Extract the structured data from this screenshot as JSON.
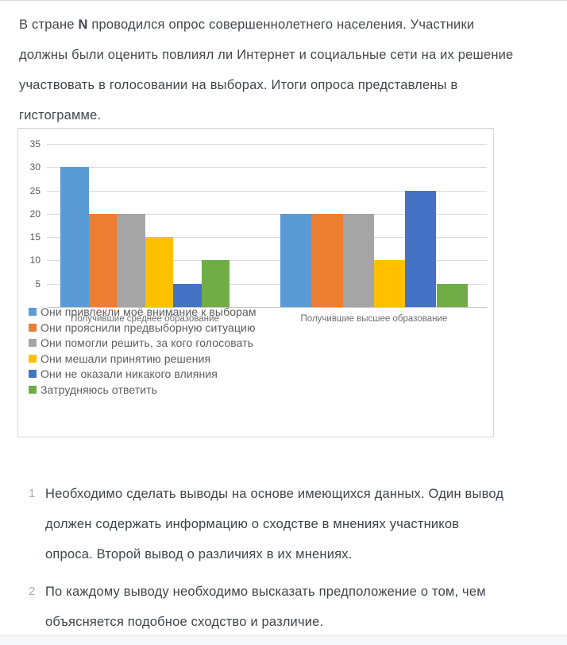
{
  "intro": {
    "line1_pre": "В стране ",
    "line1_bold": "N",
    "line1_post": " проводился опрос совершеннолетнего населения. Участники",
    "line2": "должны были оценить повлиял ли Интернет и социальные сети на их решение",
    "line3": "участвовать в голосовании на выборах. Итоги опроса представлены в",
    "line4": "гистограмме."
  },
  "chart_data": {
    "type": "bar",
    "title": "",
    "categories": [
      "Получившие среднее образование",
      "Получившие высшее образование"
    ],
    "series": [
      {
        "name": "Они привлекли моё внимание к выборам",
        "color": "#5B9BD5",
        "values": [
          30,
          20
        ]
      },
      {
        "name": "Они прояснили предвыборную ситуацию",
        "color": "#ED7D31",
        "values": [
          20,
          20
        ]
      },
      {
        "name": "Они помогли решить, за кого голосовать",
        "color": "#A5A5A5",
        "values": [
          20,
          20
        ]
      },
      {
        "name": "Они мешали принятию решения",
        "color": "#FFC000",
        "values": [
          15,
          10
        ]
      },
      {
        "name": "Они не оказали никакого влияния",
        "color": "#4472C4",
        "values": [
          5,
          25
        ]
      },
      {
        "name": "Затрудняюсь ответить",
        "color": "#70AD47",
        "values": [
          10,
          5
        ]
      }
    ],
    "ylim": [
      0,
      35
    ],
    "yticks": [
      5,
      10,
      15,
      20,
      25,
      30,
      35
    ],
    "grid": true,
    "legend_position": "bottom-left-overlay",
    "colors": {
      "gridline": "#dcdcdc",
      "axis_line": "#c6c6c6",
      "tick_label": "#595959",
      "category_label": "#6e6e6e",
      "legend_text": "#5c5c5c"
    }
  },
  "tasks": {
    "items": [
      {
        "number": "1",
        "lines": [
          "Необходимо сделать выводы на основе имеющихся данных. Один вывод",
          "должен содержать информацию о сходстве в мнениях участников",
          "опроса. Второй вывод о различиях в их мнениях."
        ]
      },
      {
        "number": "2",
        "lines": [
          "По каждому выводу необходимо высказать предположение о том, чем",
          "объясняется подобное сходство и различие."
        ]
      }
    ]
  }
}
